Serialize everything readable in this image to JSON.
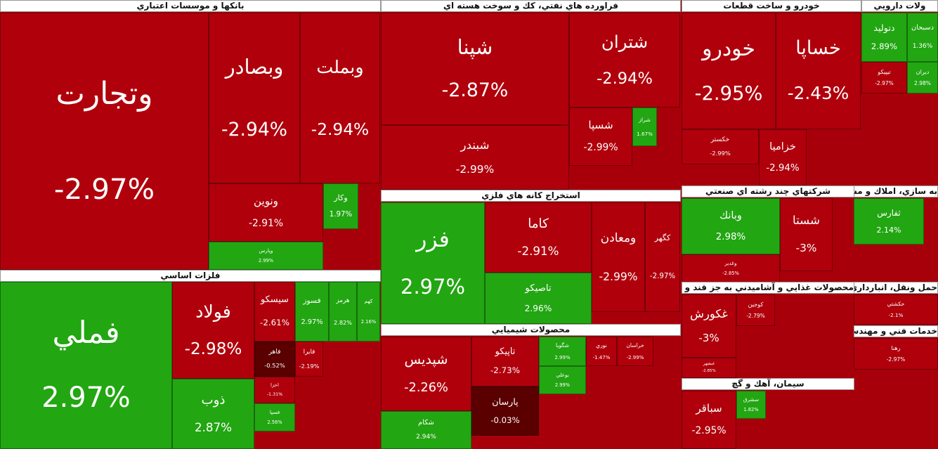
{
  "sectors": [
    {
      "title": "بانكها و موسسات اعتباري",
      "tiles": [
        {
          "name": "وتجارت",
          "change": "-2.97%"
        },
        {
          "name": "وبصادر",
          "change": "-2.94%"
        },
        {
          "name": "وبملت",
          "change": "-2.94%"
        },
        {
          "name": "ونوين",
          "change": "-2.91%"
        },
        {
          "name": "وكار",
          "change": "1.97%"
        },
        {
          "name": "وپارس",
          "change": "2.99%"
        }
      ]
    },
    {
      "title": "فلزات اساسي",
      "tiles": [
        {
          "name": "فملي",
          "change": "2.97%"
        },
        {
          "name": "فولاد",
          "change": "-2.98%"
        },
        {
          "name": "ذوب",
          "change": "2.87%"
        },
        {
          "name": "سيسكو",
          "change": "-2.61%"
        },
        {
          "name": "فسوز",
          "change": "2.97%"
        },
        {
          "name": "هرمز",
          "change": "2.82%"
        },
        {
          "name": "كهم",
          "change": "2.16%"
        },
        {
          "name": "فاهر",
          "change": "-0.52%"
        },
        {
          "name": "فايرا",
          "change": "-2.19%"
        },
        {
          "name": "اخزا",
          "change": "-1.31%"
        },
        {
          "name": "فسپا",
          "change": "2.56%"
        }
      ]
    },
    {
      "title": "فراورده هاي نفتي، كك و سوخت هسته اي",
      "tiles": [
        {
          "name": "شپنا",
          "change": "-2.87%"
        },
        {
          "name": "شبندر",
          "change": "-2.99%"
        },
        {
          "name": "شتران",
          "change": "-2.94%"
        },
        {
          "name": "شسپا",
          "change": "-2.99%"
        },
        {
          "name": "شراز",
          "change": "1.67%"
        }
      ]
    },
    {
      "title": "استخراج كانه هاي فلزي",
      "tiles": [
        {
          "name": "فزر",
          "change": "2.97%"
        },
        {
          "name": "كاما",
          "change": "-2.91%"
        },
        {
          "name": "تاصيكو",
          "change": "2.96%"
        },
        {
          "name": "ومعادن",
          "change": "-2.99%"
        },
        {
          "name": "كگهر",
          "change": "-2.97%"
        }
      ]
    },
    {
      "title": "محصولات شيميايي",
      "tiles": [
        {
          "name": "شپديس",
          "change": "-2.26%"
        },
        {
          "name": "شكام",
          "change": "2.94%"
        },
        {
          "name": "تاپيكو",
          "change": "-2.73%"
        },
        {
          "name": "پارسان",
          "change": "-0.03%"
        },
        {
          "name": "شگويا",
          "change": "2.99%"
        },
        {
          "name": "بوعلي",
          "change": "2.99%"
        },
        {
          "name": "نوري",
          "change": "-1.47%"
        },
        {
          "name": "خراسان",
          "change": "-2.99%"
        }
      ]
    },
    {
      "title": "خودرو و ساخت قطعات",
      "tiles": [
        {
          "name": "خودرو",
          "change": "-2.95%"
        },
        {
          "name": "خساپا",
          "change": "-2.43%"
        },
        {
          "name": "خكستر",
          "change": "-2.99%"
        },
        {
          "name": "خزاميا",
          "change": "-2.94%"
        }
      ]
    },
    {
      "title": "ولات دارويي",
      "tiles": [
        {
          "name": "دتوليد",
          "change": "2.89%"
        },
        {
          "name": "دسبحان",
          "change": "1.36%"
        },
        {
          "name": "تيپيكو",
          "change": "-2.97%"
        },
        {
          "name": "ديران",
          "change": "2.98%"
        }
      ]
    },
    {
      "title": "شركتهاي چند رشته اي صنعتي",
      "tiles": [
        {
          "name": "وبانك",
          "change": "2.98%"
        },
        {
          "name": "شستا",
          "change": "-3%"
        },
        {
          "name": "وغدير",
          "change": "-2.85%"
        }
      ]
    },
    {
      "title": "به سازي، املاك و مستغلات",
      "tiles": [
        {
          "name": "ثفارس",
          "change": "2.14%"
        }
      ]
    },
    {
      "title": "محصولات غذايي و آشاميدني به جز قند و شكر",
      "tiles": [
        {
          "name": "غكورش",
          "change": "-3%"
        },
        {
          "name": "كوجين",
          "change": "-2.79%"
        },
        {
          "name": "غبشهر",
          "change": "-2.85%"
        }
      ]
    },
    {
      "title": "سيمان، آهك و گچ",
      "tiles": [
        {
          "name": "سباقر",
          "change": "-2.95%"
        },
        {
          "name": "سشرق",
          "change": "1.82%"
        }
      ]
    },
    {
      "title": "حمل ونقل، انبارداري و ارتباطات",
      "tiles": [
        {
          "name": "حكشتي",
          "change": "-2.1%"
        }
      ]
    },
    {
      "title": "خدمات فني و مهندسي",
      "tiles": [
        {
          "name": "رهنا",
          "change": "-2.97%"
        }
      ]
    }
  ]
}
